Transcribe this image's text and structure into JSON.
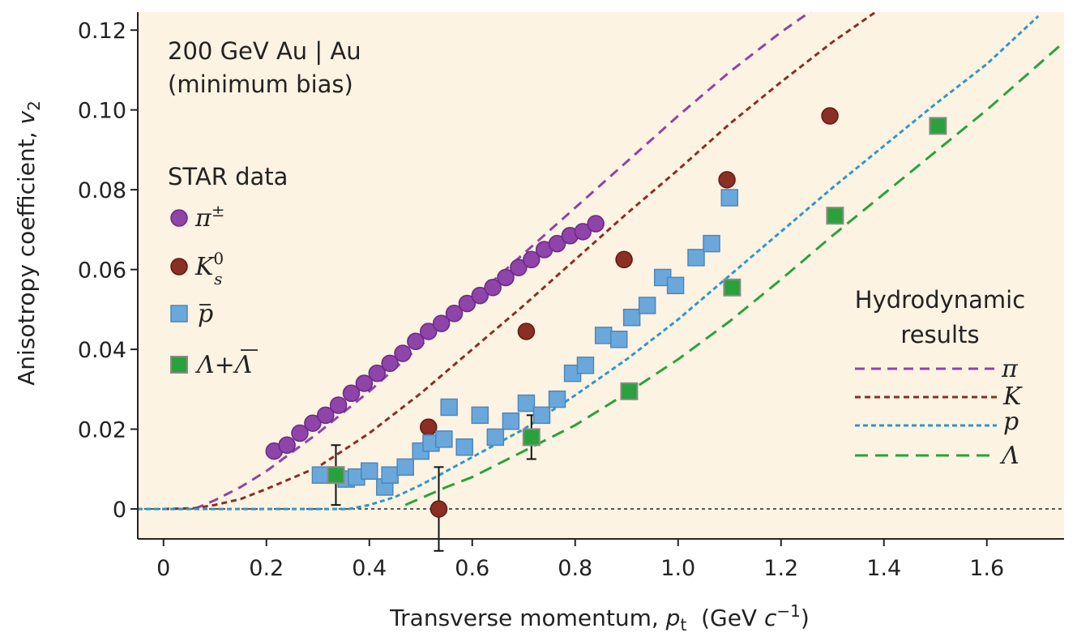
{
  "chart_data": {
    "type": "scatter",
    "xlabel": "Transverse momentum, p_t (GeV c⁻¹)",
    "xlabel_parts": {
      "prefix": "Transverse momentum, ",
      "var": "p",
      "sub": "t",
      "suffix_open": "  (GeV ",
      "c": "c",
      "sup": "−1",
      "suffix_close": ")"
    },
    "ylabel": "Anisotropy coefficient, v_2",
    "ylabel_parts": {
      "prefix": "Anisotropy coefficient, ",
      "var": "v",
      "sub": "2"
    },
    "xlim": [
      -0.05,
      1.75
    ],
    "ylim": [
      -0.0075,
      0.1245
    ],
    "x_ticks": [
      0,
      0.2,
      0.4,
      0.6,
      0.8,
      1.0,
      1.2,
      1.4,
      1.6
    ],
    "x_tick_labels": [
      "0",
      "0.2",
      "0.4",
      "0.6",
      "0.8",
      "1.0",
      "1.2",
      "1.4",
      "1.6"
    ],
    "y_ticks": [
      0,
      0.02,
      0.04,
      0.06,
      0.08,
      0.1,
      0.12
    ],
    "y_tick_labels": [
      "0",
      "0.02",
      "0.04",
      "0.06",
      "0.08",
      "0.10",
      "0.12"
    ],
    "annotation_lines": [
      "200 GeV Au | Au",
      "(minimum bias)"
    ],
    "data_legend_title": "STAR data",
    "hydro_legend_title_lines": [
      "Hydrodynamic",
      "results"
    ],
    "background": "#fdf3e3",
    "zero_line": true,
    "series": [
      {
        "name": "π±",
        "label_main": "π",
        "label_sup": "±",
        "marker": "circle",
        "color": "#8e44a8",
        "edge": "#6a2a84",
        "x": [
          0.215,
          0.24,
          0.265,
          0.29,
          0.315,
          0.34,
          0.365,
          0.39,
          0.415,
          0.44,
          0.465,
          0.49,
          0.515,
          0.54,
          0.565,
          0.59,
          0.615,
          0.64,
          0.665,
          0.69,
          0.715,
          0.74,
          0.765,
          0.79,
          0.815,
          0.84
        ],
        "y": [
          0.0145,
          0.016,
          0.019,
          0.0215,
          0.0235,
          0.026,
          0.029,
          0.0315,
          0.034,
          0.0365,
          0.039,
          0.042,
          0.0445,
          0.0465,
          0.049,
          0.0515,
          0.0535,
          0.0555,
          0.058,
          0.0605,
          0.0625,
          0.065,
          0.0665,
          0.0685,
          0.0695,
          0.0715
        ]
      },
      {
        "name": "K⁰s",
        "label_main": "K",
        "label_sup": "0",
        "label_sub": "s",
        "marker": "circle",
        "color": "#8b2e24",
        "edge": "#5e1c15",
        "x": [
          0.515,
          0.535,
          0.705,
          0.895,
          1.095,
          1.295
        ],
        "y": [
          0.0205,
          0.0,
          0.0445,
          0.0625,
          0.0825,
          0.0985
        ],
        "errors": [
          null,
          0.0105,
          null,
          null,
          null,
          null
        ]
      },
      {
        "name": "p̄",
        "label_main": "p",
        "marker": "square",
        "color": "#6aa8dc",
        "edge": "#4d87b8",
        "x": [
          0.305,
          0.355,
          0.375,
          0.4,
          0.43,
          0.44,
          0.47,
          0.5,
          0.52,
          0.545,
          0.555,
          0.585,
          0.615,
          0.645,
          0.675,
          0.705,
          0.735,
          0.765,
          0.795,
          0.82,
          0.855,
          0.885,
          0.91,
          0.94,
          0.97,
          0.995,
          1.035,
          1.065,
          1.1
        ],
        "y": [
          0.0085,
          0.0075,
          0.008,
          0.0095,
          0.0055,
          0.0085,
          0.0105,
          0.0145,
          0.0165,
          0.0175,
          0.0255,
          0.0155,
          0.0235,
          0.018,
          0.022,
          0.0265,
          0.0235,
          0.0275,
          0.034,
          0.036,
          0.0435,
          0.0425,
          0.048,
          0.051,
          0.058,
          0.056,
          0.063,
          0.0665,
          0.078
        ]
      },
      {
        "name": "Λ+Λ̄",
        "label_main": "Λ+Λ",
        "marker": "square",
        "color": "#2aa23c",
        "edge": "#8a8a8a",
        "x": [
          0.335,
          0.715,
          0.905,
          1.105,
          1.305,
          1.505
        ],
        "y": [
          0.0085,
          0.018,
          0.0295,
          0.0555,
          0.0735,
          0.096
        ],
        "errors": [
          0.0075,
          0.0055,
          null,
          null,
          null,
          null
        ]
      }
    ],
    "hydro_curves": [
      {
        "name": "π",
        "color": "#8e44a8",
        "dash": "12 8",
        "x": [
          0.06,
          0.1,
          0.15,
          0.2,
          0.3,
          0.4,
          0.5,
          0.6,
          0.7,
          0.8,
          0.9,
          1.0,
          1.1,
          1.2,
          1.3,
          1.35
        ],
        "y": [
          0.0,
          0.0022,
          0.0055,
          0.0095,
          0.019,
          0.0295,
          0.041,
          0.0525,
          0.064,
          0.0755,
          0.087,
          0.0985,
          0.1095,
          0.1195,
          0.1285,
          0.133
        ]
      },
      {
        "name": "K",
        "color": "#8b2e24",
        "dash": "7 5",
        "x": [
          0,
          0.06,
          0.1,
          0.15,
          0.2,
          0.3,
          0.4,
          0.5,
          0.6,
          0.7,
          0.8,
          0.9,
          1.0,
          1.1,
          1.2,
          1.3,
          1.4,
          1.45
        ],
        "y": [
          0,
          0.0002,
          0.001,
          0.0025,
          0.005,
          0.0105,
          0.019,
          0.029,
          0.04,
          0.051,
          0.0625,
          0.074,
          0.085,
          0.0965,
          0.107,
          0.117,
          0.126,
          0.131
        ]
      },
      {
        "name": "p",
        "color": "#2f97c9",
        "dash": "6 4",
        "x": [
          -0.05,
          0.1,
          0.2,
          0.3,
          0.36,
          0.4,
          0.45,
          0.5,
          0.6,
          0.7,
          0.8,
          0.9,
          1.0,
          1.1,
          1.2,
          1.3,
          1.4,
          1.5,
          1.6,
          1.7
        ],
        "y": [
          0,
          0,
          0,
          0,
          0,
          0.001,
          0.003,
          0.006,
          0.013,
          0.02,
          0.0285,
          0.0375,
          0.0475,
          0.0585,
          0.0695,
          0.0805,
          0.091,
          0.1015,
          0.1115,
          0.1235
        ]
      },
      {
        "name": "Λ",
        "color": "#2aa23c",
        "dash": "16 9",
        "x": [
          0.47,
          0.55,
          0.6,
          0.7,
          0.8,
          0.9,
          1.0,
          1.1,
          1.2,
          1.3,
          1.4,
          1.5,
          1.6,
          1.75
        ],
        "y": [
          0.001,
          0.0055,
          0.008,
          0.0145,
          0.021,
          0.029,
          0.0375,
          0.047,
          0.0575,
          0.0685,
          0.079,
          0.0895,
          0.1,
          0.117
        ]
      }
    ]
  }
}
